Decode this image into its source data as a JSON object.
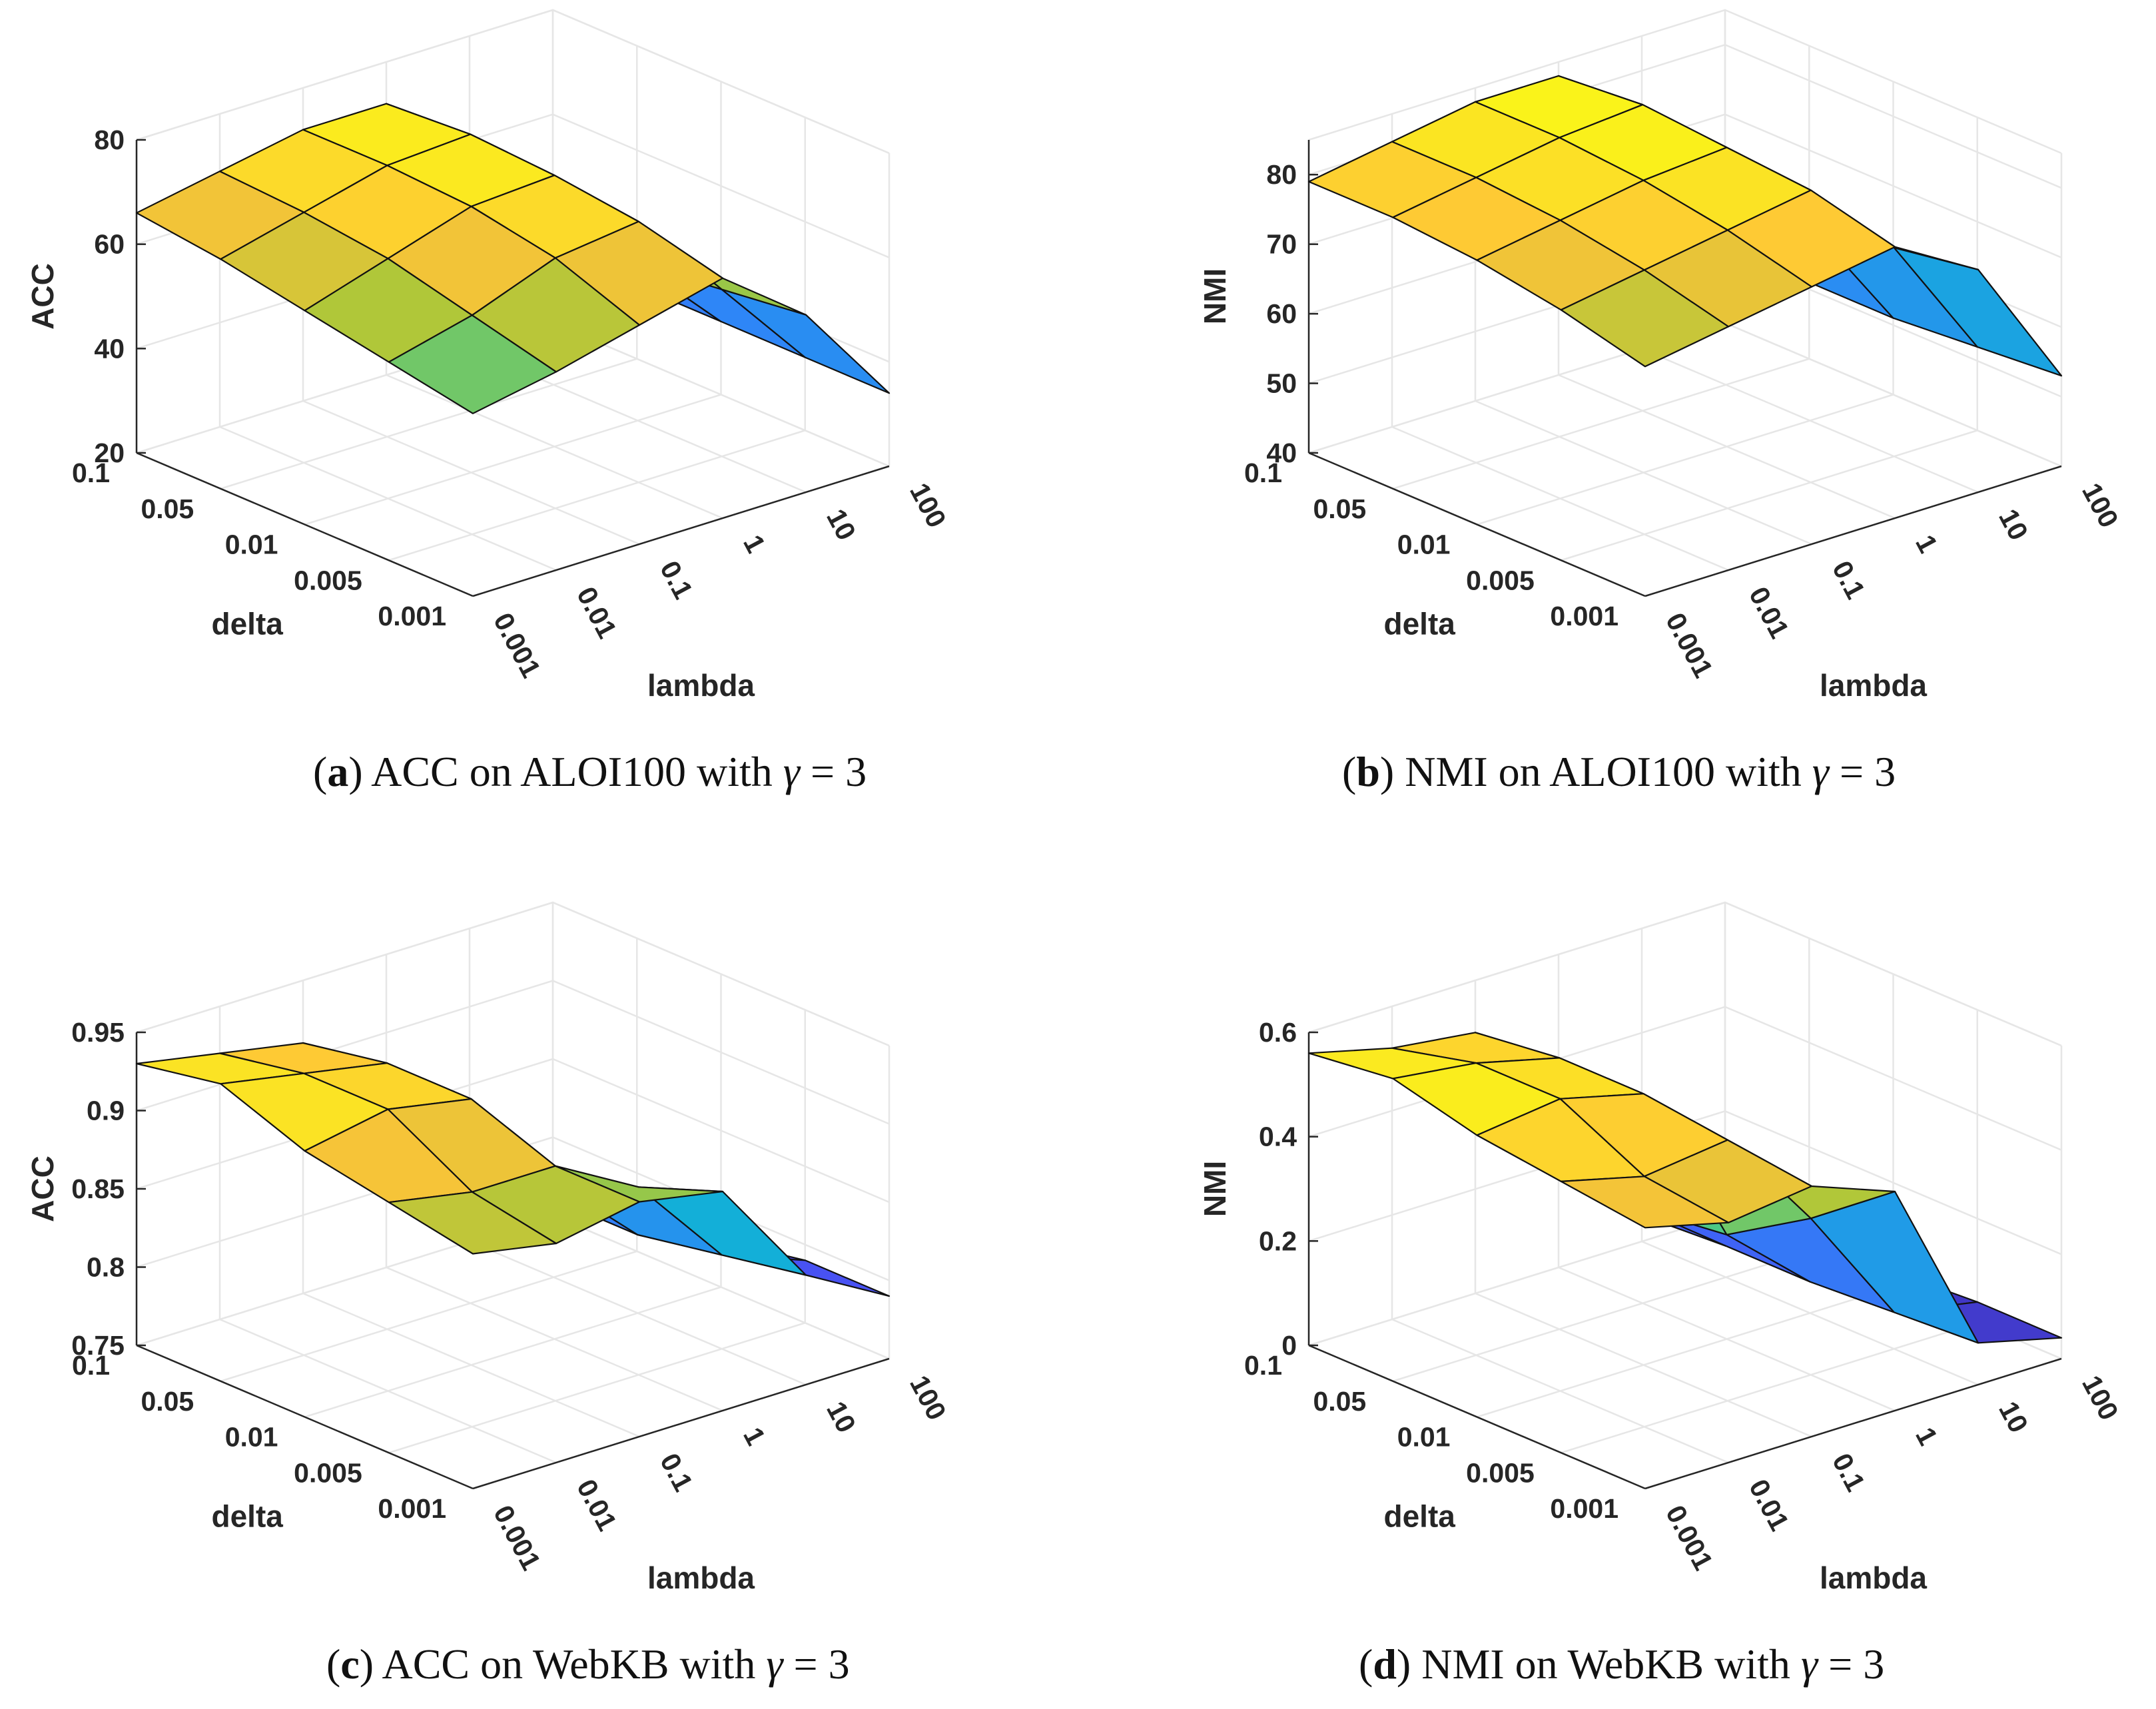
{
  "figure": {
    "panels": [
      {
        "caption": {
          "letter": "a",
          "text": "ACC on ALOI100 with",
          "gamma": "γ",
          "eq": "=",
          "value": "3"
        },
        "zlabel": "ACC",
        "deltaLabel": "delta",
        "lambdaLabel": "lambda"
      },
      {
        "caption": {
          "letter": "b",
          "text": "NMI on ALOI100 with",
          "gamma": "γ",
          "eq": "=",
          "value": "3"
        },
        "zlabel": "NMI",
        "deltaLabel": "delta",
        "lambdaLabel": "lambda"
      },
      {
        "caption": {
          "letter": "c",
          "text": "ACC on WebKB with",
          "gamma": "γ",
          "eq": "=",
          "value": "3"
        },
        "zlabel": "ACC",
        "deltaLabel": "delta",
        "lambdaLabel": "lambda"
      },
      {
        "caption": {
          "letter": "d",
          "text": "NMI on WebKB with",
          "gamma": "γ",
          "eq": "=",
          "value": "3"
        },
        "zlabel": "NMI",
        "deltaLabel": "delta",
        "lambdaLabel": "lambda"
      }
    ]
  },
  "chart_data": [
    {
      "type": "surface",
      "title": "(a) ACC on ALOI100 with γ = 3",
      "xlabel": "lambda",
      "ylabel": "delta",
      "zlabel": "ACC",
      "lambda": [
        "0.001",
        "0.01",
        "0.1",
        "1",
        "10",
        "100"
      ],
      "delta": [
        "0.1",
        "0.05",
        "0.01",
        "0.005",
        "0.001"
      ],
      "zlim": [
        20,
        80
      ],
      "zticks": [
        "20",
        "40",
        "60",
        "80"
      ],
      "colormap_range": [
        30,
        74
      ],
      "values": [
        [
          66,
          69,
          72,
          72,
          46,
          33
        ],
        [
          64,
          68,
          72,
          73,
          48,
          34
        ],
        [
          61,
          66,
          71,
          72,
          50,
          34
        ],
        [
          58,
          62,
          68,
          70,
          52,
          34
        ],
        [
          55,
          58,
          62,
          66,
          54,
          34
        ]
      ]
    },
    {
      "type": "surface",
      "title": "(b) NMI on ALOI100 with γ = 3",
      "xlabel": "lambda",
      "ylabel": "delta",
      "zlabel": "NMI",
      "lambda": [
        "0.001",
        "0.01",
        "0.1",
        "1",
        "10",
        "100"
      ],
      "delta": [
        "0.1",
        "0.05",
        "0.01",
        "0.005",
        "0.001"
      ],
      "zlim": [
        40,
        85
      ],
      "zticks": [
        "40",
        "50",
        "60",
        "70",
        "80"
      ],
      "colormap_range": [
        48,
        84
      ],
      "values": [
        [
          79,
          81,
          83,
          83,
          64,
          50
        ],
        [
          79,
          81,
          83,
          84,
          66,
          51
        ],
        [
          78,
          80,
          82,
          83,
          68,
          51
        ],
        [
          76,
          78,
          80,
          82,
          70,
          52
        ],
        [
          73,
          75,
          77,
          79,
          72,
          53
        ]
      ]
    },
    {
      "type": "surface",
      "title": "(c) ACC on WebKB with γ = 3",
      "xlabel": "lambda",
      "ylabel": "delta",
      "zlabel": "ACC",
      "lambda": [
        "0.001",
        "0.01",
        "0.1",
        "1",
        "10",
        "100"
      ],
      "delta": [
        "0.1",
        "0.05",
        "0.01",
        "0.005",
        "0.001"
      ],
      "zlim": [
        0.75,
        0.95
      ],
      "zticks": [
        "0.75",
        "0.8",
        "0.85",
        "0.9",
        "0.95"
      ],
      "colormap_range": [
        0.78,
        0.94
      ],
      "values": [
        [
          0.93,
          0.92,
          0.91,
          0.84,
          0.79,
          0.78
        ],
        [
          0.94,
          0.93,
          0.92,
          0.84,
          0.8,
          0.78
        ],
        [
          0.92,
          0.93,
          0.92,
          0.85,
          0.8,
          0.78
        ],
        [
          0.91,
          0.9,
          0.9,
          0.87,
          0.81,
          0.79
        ],
        [
          0.9,
          0.89,
          0.9,
          0.89,
          0.82,
          0.79
        ]
      ]
    },
    {
      "type": "surface",
      "title": "(d) NMI on WebKB with γ = 3",
      "xlabel": "lambda",
      "ylabel": "delta",
      "zlabel": "NMI",
      "lambda": [
        "0.001",
        "0.01",
        "0.1",
        "1",
        "10",
        "100"
      ],
      "delta": [
        "0.1",
        "0.05",
        "0.01",
        "0.005",
        "0.001"
      ],
      "zlim": [
        0,
        0.6
      ],
      "zticks": [
        "0",
        "0.2",
        "0.4",
        "0.6"
      ],
      "colormap_range": [
        0.02,
        0.58
      ],
      "values": [
        [
          0.56,
          0.52,
          0.5,
          0.18,
          0.05,
          0.03
        ],
        [
          0.58,
          0.56,
          0.52,
          0.18,
          0.06,
          0.03
        ],
        [
          0.54,
          0.56,
          0.52,
          0.2,
          0.06,
          0.03
        ],
        [
          0.52,
          0.48,
          0.5,
          0.3,
          0.07,
          0.04
        ],
        [
          0.5,
          0.46,
          0.48,
          0.42,
          0.08,
          0.04
        ]
      ]
    }
  ]
}
